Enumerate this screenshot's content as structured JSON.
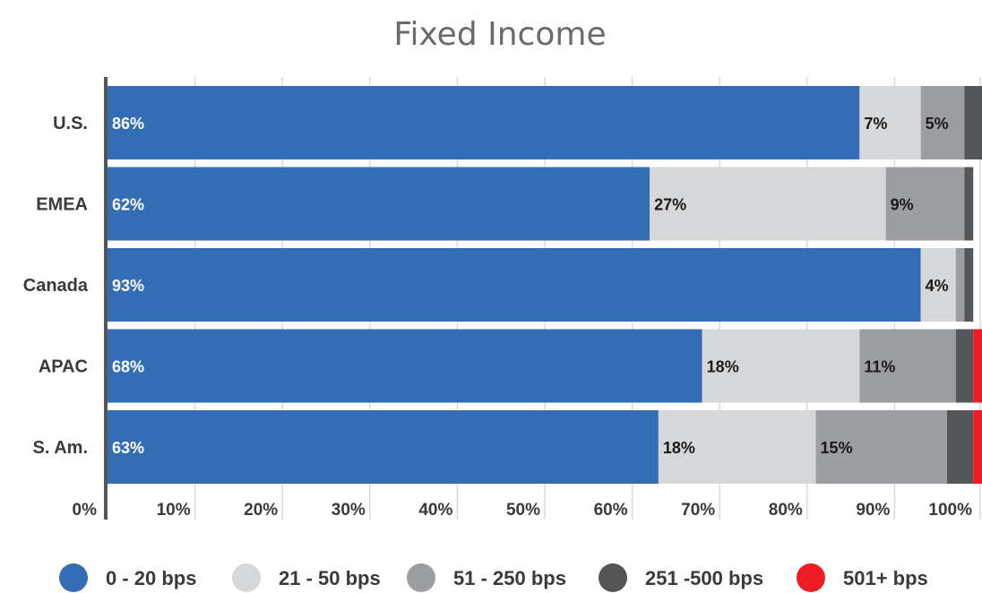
{
  "chart_data": {
    "type": "bar",
    "orientation": "horizontal",
    "stacked": true,
    "title": "Fixed Income",
    "xlabel": "",
    "ylabel": "",
    "xlim": [
      0,
      100
    ],
    "x_ticks": [
      "0%",
      "10%",
      "20%",
      "30%",
      "40%",
      "50%",
      "60%",
      "70%",
      "80%",
      "90%",
      "100%"
    ],
    "grid": true,
    "legend_position": "bottom",
    "categories": [
      "U.S.",
      "EMEA",
      "Canada",
      "APAC",
      "S. Am."
    ],
    "series": [
      {
        "name": "0 - 20 bps",
        "color": "#336eb4",
        "values": [
          86,
          62,
          93,
          68,
          63
        ],
        "labels": [
          "86%",
          "62%",
          "93%",
          "68%",
          "63%"
        ],
        "label_color": "#ffffff"
      },
      {
        "name": "21 - 50 bps",
        "color": "#d6d7d8",
        "values": [
          7,
          27,
          4,
          18,
          18
        ],
        "labels": [
          "7%",
          "27%",
          "4%",
          "18%",
          "18%"
        ],
        "label_color": "#1a1a1a"
      },
      {
        "name": "51 - 250 bps",
        "color": "#9d9ea1",
        "values": [
          5,
          9,
          1,
          11,
          15
        ],
        "labels": [
          "5%",
          "9%",
          "",
          "11%",
          "15%"
        ],
        "label_color": "#1a1a1a"
      },
      {
        "name": "251 -500 bps",
        "color": "#555658",
        "values": [
          2,
          1,
          1,
          2,
          3
        ],
        "labels": [
          "",
          "",
          "",
          "",
          ""
        ],
        "label_color": "#ffffff"
      },
      {
        "name": "501+ bps",
        "color": "#ee1c25",
        "values": [
          0,
          0,
          0,
          1,
          1
        ],
        "labels": [
          "",
          "",
          "",
          "",
          ""
        ],
        "label_color": "#ffffff"
      }
    ]
  }
}
